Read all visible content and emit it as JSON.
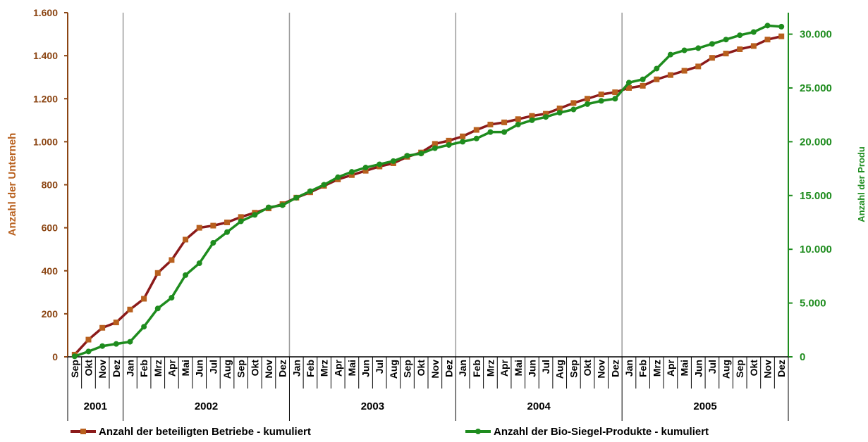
{
  "chart_data": {
    "type": "line",
    "y_left": {
      "label": "Anzahl der Unterneh",
      "ylim": [
        0,
        1600
      ],
      "ticks": [
        0,
        200,
        400,
        600,
        800,
        1000,
        1200,
        1400,
        1600
      ],
      "tick_labels": [
        "0",
        "200",
        "400",
        "600",
        "800",
        "1.000",
        "1.200",
        "1.400",
        "1.600"
      ],
      "color": "#8B4513"
    },
    "y_right": {
      "label": "Anzahl der Produ",
      "ylim": [
        0,
        32000
      ],
      "ticks": [
        0,
        5000,
        10000,
        15000,
        20000,
        25000,
        30000
      ],
      "tick_labels": [
        "0",
        "5.000",
        "10.000",
        "15.000",
        "20.000",
        "25.000",
        "30.000"
      ],
      "color": "#1E8C1E"
    },
    "years": [
      {
        "label": "2001",
        "months": 4
      },
      {
        "label": "2002",
        "months": 12
      },
      {
        "label": "2003",
        "months": 12
      },
      {
        "label": "2004",
        "months": 12
      },
      {
        "label": "2005",
        "months": 12
      }
    ],
    "x": [
      "Sep",
      "Okt",
      "Nov",
      "Dez",
      "Jan",
      "Feb",
      "Mrz",
      "Apr",
      "Mai",
      "Jun",
      "Jul",
      "Aug",
      "Sep",
      "Okt",
      "Nov",
      "Dez",
      "Jan",
      "Feb",
      "Mrz",
      "Apr",
      "Mai",
      "Jun",
      "Jul",
      "Aug",
      "Sep",
      "Okt",
      "Nov",
      "Dez",
      "Jan",
      "Feb",
      "Mrz",
      "Apr",
      "Mai",
      "Jun",
      "Jul",
      "Aug",
      "Sep",
      "Okt",
      "Nov",
      "Dez",
      "Jan",
      "Feb",
      "Mrz",
      "Apr",
      "Mai",
      "Jun",
      "Jul",
      "Aug",
      "Sep",
      "Okt",
      "Nov",
      "Dez"
    ],
    "series": [
      {
        "name": "Anzahl der beteiligten Betriebe - kumuliert",
        "axis": "left",
        "color": "#8B1A1A",
        "marker": "square",
        "values": [
          10,
          80,
          135,
          160,
          220,
          270,
          390,
          450,
          545,
          600,
          610,
          625,
          650,
          670,
          690,
          710,
          740,
          765,
          795,
          825,
          845,
          865,
          885,
          900,
          930,
          950,
          990,
          1005,
          1025,
          1055,
          1080,
          1090,
          1105,
          1120,
          1130,
          1155,
          1180,
          1200,
          1220,
          1230,
          1250,
          1260,
          1290,
          1310,
          1330,
          1350,
          1390,
          1410,
          1430,
          1445,
          1475,
          1490
        ]
      },
      {
        "name": "Anzahl der Bio-Siegel-Produkte -  kumuliert",
        "axis": "right",
        "color": "#1E8C1E",
        "marker": "circle",
        "values": [
          50,
          500,
          1000,
          1200,
          1400,
          2800,
          4500,
          5500,
          7600,
          8700,
          10600,
          11600,
          12600,
          13200,
          13900,
          14100,
          14800,
          15400,
          16000,
          16700,
          17200,
          17600,
          17900,
          18200,
          18700,
          18900,
          19400,
          19700,
          20000,
          20300,
          20900,
          20900,
          21600,
          22000,
          22300,
          22700,
          23000,
          23500,
          23800,
          24000,
          25500,
          25800,
          26800,
          28100,
          28500,
          28700,
          29100,
          29500,
          29900,
          30200,
          30800,
          30700
        ]
      }
    ]
  }
}
